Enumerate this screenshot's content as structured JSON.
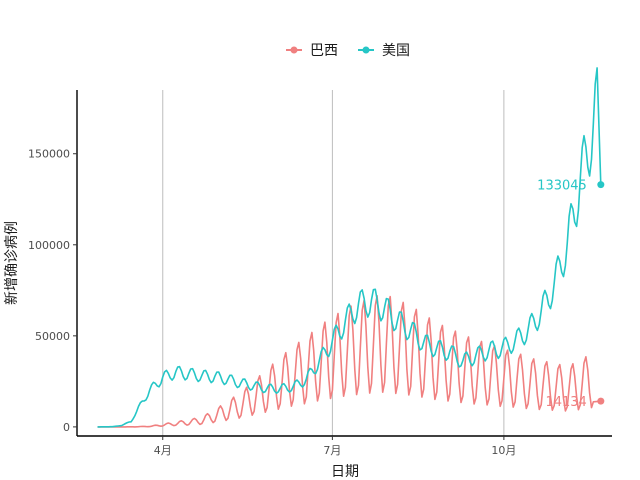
{
  "chart_data": {
    "type": "line",
    "title": "",
    "xlabel": "日期",
    "ylabel": "新增确诊病例",
    "xlim": [
      "2020-02-15",
      "2020-11-28"
    ],
    "ylim": [
      -5000,
      185000
    ],
    "x_ticks": [
      {
        "date": "2020-04-01",
        "label": "4月"
      },
      {
        "date": "2020-07-01",
        "label": "7月"
      },
      {
        "date": "2020-10-01",
        "label": "10月"
      }
    ],
    "y_ticks": [
      {
        "value": 0,
        "label": "0"
      },
      {
        "value": 50000,
        "label": "50000"
      },
      {
        "value": 100000,
        "label": "100000"
      },
      {
        "value": 150000,
        "label": "150000"
      }
    ],
    "grid": "vertical-major",
    "legend": {
      "position": "top"
    },
    "series": [
      {
        "name": "巴西",
        "color": "#f08080",
        "end_label": "14134",
        "end_value": 14134,
        "end_date": "2020-11-22",
        "points": [
          [
            "2020-02-26",
            0
          ],
          [
            "2020-03-10",
            0
          ],
          [
            "2020-03-17",
            50
          ],
          [
            "2020-03-25",
            300
          ],
          [
            "2020-04-01",
            1000
          ],
          [
            "2020-04-08",
            1800
          ],
          [
            "2020-04-15",
            2500
          ],
          [
            "2020-04-22",
            3500
          ],
          [
            "2020-04-29",
            6000
          ],
          [
            "2020-05-06",
            9000
          ],
          [
            "2020-05-13",
            12000
          ],
          [
            "2020-05-20",
            16000
          ],
          [
            "2020-05-27",
            20000
          ],
          [
            "2020-06-03",
            24000
          ],
          [
            "2020-06-10",
            28000
          ],
          [
            "2020-06-17",
            31000
          ],
          [
            "2020-06-24",
            35000
          ],
          [
            "2020-07-01",
            38000
          ],
          [
            "2020-07-08",
            41000
          ],
          [
            "2020-07-15",
            43000
          ],
          [
            "2020-07-22",
            45000
          ],
          [
            "2020-07-29",
            46000
          ],
          [
            "2020-08-05",
            44000
          ],
          [
            "2020-08-12",
            42000
          ],
          [
            "2020-08-19",
            39000
          ],
          [
            "2020-08-26",
            36000
          ],
          [
            "2020-09-02",
            34000
          ],
          [
            "2020-09-09",
            32000
          ],
          [
            "2020-09-16",
            30000
          ],
          [
            "2020-09-23",
            29000
          ],
          [
            "2020-09-30",
            27000
          ],
          [
            "2020-10-07",
            26000
          ],
          [
            "2020-10-14",
            24000
          ],
          [
            "2020-10-21",
            23000
          ],
          [
            "2020-10-28",
            22000
          ],
          [
            "2020-11-04",
            21000
          ],
          [
            "2020-11-11",
            23000
          ],
          [
            "2020-11-18",
            26000
          ],
          [
            "2020-11-22",
            14134
          ]
        ],
        "weekly_swing": 0.6
      },
      {
        "name": "美国",
        "color": "#26c6c6",
        "end_label": "133045",
        "end_value": 133045,
        "end_date": "2020-11-22",
        "points": [
          [
            "2020-02-26",
            0
          ],
          [
            "2020-03-05",
            100
          ],
          [
            "2020-03-10",
            800
          ],
          [
            "2020-03-15",
            3000
          ],
          [
            "2020-03-20",
            12000
          ],
          [
            "2020-03-25",
            20000
          ],
          [
            "2020-04-01",
            27000
          ],
          [
            "2020-04-08",
            30000
          ],
          [
            "2020-04-15",
            29000
          ],
          [
            "2020-04-22",
            28000
          ],
          [
            "2020-04-29",
            27500
          ],
          [
            "2020-05-06",
            26000
          ],
          [
            "2020-05-13",
            24000
          ],
          [
            "2020-05-20",
            22500
          ],
          [
            "2020-05-27",
            21000
          ],
          [
            "2020-06-03",
            21000
          ],
          [
            "2020-06-10",
            22000
          ],
          [
            "2020-06-17",
            26000
          ],
          [
            "2020-06-24",
            36000
          ],
          [
            "2020-07-01",
            47000
          ],
          [
            "2020-07-08",
            58000
          ],
          [
            "2020-07-15",
            67000
          ],
          [
            "2020-07-22",
            69000
          ],
          [
            "2020-07-29",
            65000
          ],
          [
            "2020-08-05",
            58000
          ],
          [
            "2020-08-12",
            53000
          ],
          [
            "2020-08-19",
            46000
          ],
          [
            "2020-08-26",
            43000
          ],
          [
            "2020-09-02",
            41000
          ],
          [
            "2020-09-09",
            36000
          ],
          [
            "2020-09-16",
            39000
          ],
          [
            "2020-09-23",
            42000
          ],
          [
            "2020-09-30",
            43000
          ],
          [
            "2020-10-07",
            47000
          ],
          [
            "2020-10-14",
            53000
          ],
          [
            "2020-10-21",
            63000
          ],
          [
            "2020-10-28",
            78000
          ],
          [
            "2020-11-04",
            100000
          ],
          [
            "2020-11-11",
            135000
          ],
          [
            "2020-11-18",
            165000
          ],
          [
            "2020-11-20",
            177000
          ],
          [
            "2020-11-22",
            133045
          ]
        ],
        "weekly_swing": 0.12
      }
    ]
  }
}
